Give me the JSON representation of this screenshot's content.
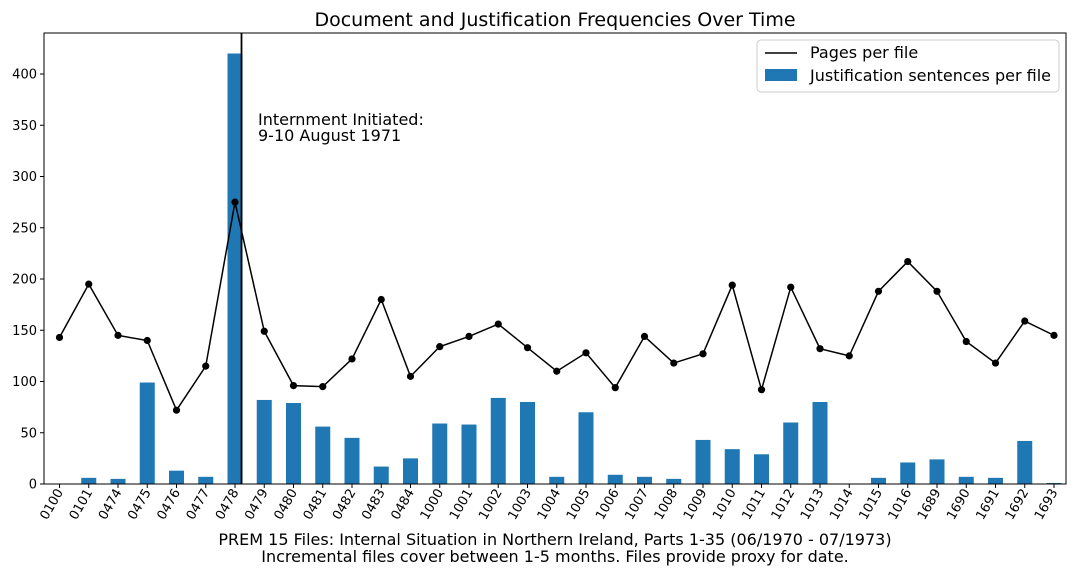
{
  "chart_data": {
    "type": "bar",
    "title": "Document and Justification Frequencies Over Time",
    "xlabel_line1": "PREM 15 Files: Internal Situation in Northern Ireland, Parts 1-35 (06/1970 - 07/1973)",
    "xlabel_line2": "Incremental files cover between 1-5 months. Files provide proxy for date.",
    "ylabel": "",
    "ylim": [
      0,
      440
    ],
    "yticks": [
      "0",
      "50",
      "100",
      "150",
      "200",
      "250",
      "300",
      "350",
      "400"
    ],
    "categories": [
      "0100",
      "0101",
      "0474",
      "0475",
      "0476",
      "0477",
      "0478",
      "0479",
      "0480",
      "0481",
      "0482",
      "0483",
      "0484",
      "1000",
      "1001",
      "1002",
      "1003",
      "1004",
      "1005",
      "1006",
      "1007",
      "1008",
      "1009",
      "1010",
      "1011",
      "1012",
      "1013",
      "1014",
      "1015",
      "1016",
      "1689",
      "1690",
      "1691",
      "1692",
      "1693"
    ],
    "series": [
      {
        "name": "Justification sentences per file",
        "kind": "bar",
        "color": "#1f77b4",
        "values": [
          0,
          6,
          5,
          99,
          13,
          7,
          420,
          82,
          79,
          56,
          45,
          17,
          25,
          59,
          58,
          84,
          80,
          7,
          70,
          9,
          7,
          5,
          43,
          34,
          29,
          60,
          80,
          0,
          6,
          21,
          24,
          7,
          6,
          42,
          1
        ]
      },
      {
        "name": "Pages per file",
        "kind": "line",
        "color": "#000000",
        "values": [
          143,
          195,
          145,
          140,
          72,
          115,
          275,
          149,
          96,
          95,
          122,
          180,
          105,
          134,
          144,
          156,
          133,
          110,
          128,
          94,
          144,
          118,
          127,
          194,
          92,
          192,
          132,
          125,
          188,
          217,
          188,
          139,
          118,
          159,
          145
        ]
      }
    ],
    "vline": {
      "category": "0478",
      "annotation_line1": "Internment Initiated:",
      "annotation_line2": "9-10 August 1971"
    },
    "legend_placement": "top-right",
    "grid": false
  }
}
